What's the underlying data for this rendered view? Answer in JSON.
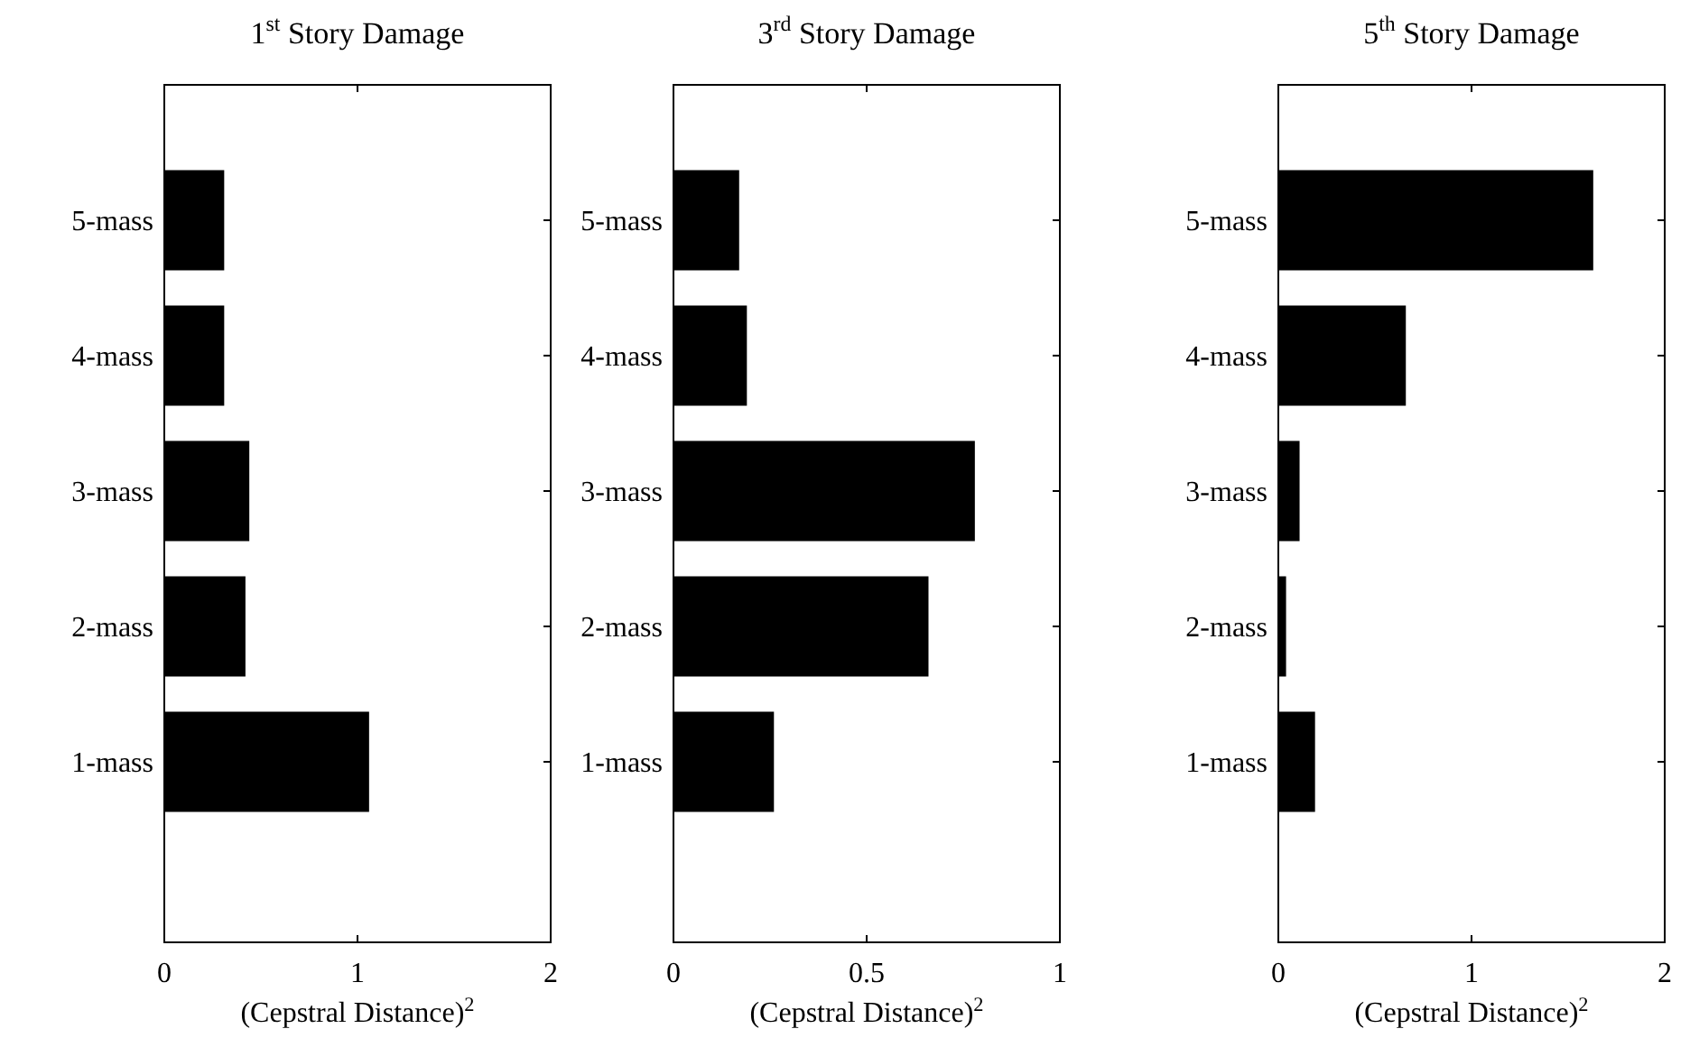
{
  "chart_data": [
    {
      "type": "bar",
      "orientation": "horizontal",
      "title": "1$^{st}$ Story Damage",
      "xlabel": "(Cepstral Distance)$^{2}$",
      "categories": [
        "5-mass",
        "4-mass",
        "3-mass",
        "2-mass",
        "1-mass"
      ],
      "values": [
        0.31,
        0.31,
        0.44,
        0.42,
        1.06
      ],
      "color": "#000000",
      "xlim": [
        0,
        2
      ],
      "xticks": [
        0,
        1,
        2
      ]
    },
    {
      "type": "bar",
      "orientation": "horizontal",
      "title": "3$^{rd}$ Story Damage",
      "xlabel": "(Cepstral Distance)$^{2}$",
      "categories": [
        "5-mass",
        "4-mass",
        "3-mass",
        "2-mass",
        "1-mass"
      ],
      "values": [
        0.17,
        0.19,
        0.78,
        0.66,
        0.26
      ],
      "color": "#000000",
      "xlim": [
        0,
        1
      ],
      "xticks": [
        0,
        0.5,
        1
      ]
    },
    {
      "type": "bar",
      "orientation": "horizontal",
      "title": "5$^{th}$ Story Damage",
      "xlabel": "(Cepstral Distance)$^{2}$",
      "categories": [
        "5-mass",
        "4-mass",
        "3-mass",
        "2-mass",
        "1-mass"
      ],
      "values": [
        1.63,
        0.66,
        0.11,
        0.04,
        0.19
      ],
      "color": "#000000",
      "xlim": [
        0,
        2
      ],
      "xticks": [
        0,
        1,
        2
      ]
    }
  ]
}
